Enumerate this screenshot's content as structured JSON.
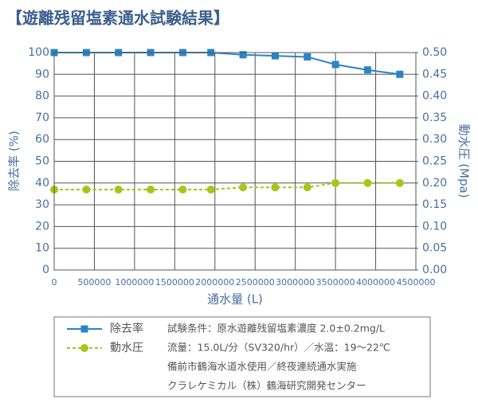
{
  "chart_data": {
    "type": "line",
    "title": "【遊離残留塩素通水試験結果】",
    "x_label": "通水量 (L)",
    "y_label": "除去率 (%)",
    "y2_label": "動水圧 (Mpa)",
    "x": [
      0,
      400000,
      800000,
      1200000,
      1600000,
      1950000,
      2350000,
      2750000,
      3150000,
      3500000,
      3900000,
      4300000
    ],
    "series": [
      {
        "name": "除去率",
        "color": "#2b84c6",
        "marker": "square",
        "linestyle": "solid",
        "values": [
          100,
          100,
          100,
          100,
          100,
          100,
          99,
          98.5,
          98,
          94.5,
          92,
          90
        ]
      },
      {
        "name": "動水圧",
        "color": "#a6c61a",
        "marker": "circle",
        "linestyle": "dashed",
        "axis": "y2",
        "values": [
          0.185,
          0.185,
          0.185,
          0.185,
          0.185,
          0.185,
          0.19,
          0.19,
          0.19,
          0.2,
          0.2,
          0.2
        ]
      }
    ],
    "xlim": [
      0,
      4500000
    ],
    "xticks": [
      0,
      500000,
      1000000,
      1500000,
      2000000,
      2500000,
      3000000,
      3500000,
      4000000,
      4500000
    ],
    "ylim": [
      0,
      100
    ],
    "yticks": [
      0,
      10,
      20,
      30,
      40,
      50,
      60,
      70,
      80,
      90,
      100
    ],
    "y2lim": [
      0,
      0.5
    ],
    "y2ticks": [
      {
        "value": 0,
        "label": "0.00"
      },
      {
        "value": 0.05,
        "label": "0.05"
      },
      {
        "value": 0.1,
        "label": "0.10"
      },
      {
        "value": 0.15,
        "label": "0.15"
      },
      {
        "value": 0.2,
        "label": "0.20"
      },
      {
        "value": 0.25,
        "label": "0.25"
      },
      {
        "value": 0.3,
        "label": "0.30"
      },
      {
        "value": 0.35,
        "label": "0.35"
      },
      {
        "value": 0.4,
        "label": "0.40"
      },
      {
        "value": 0.45,
        "label": "0.45"
      },
      {
        "value": 0.5,
        "label": "0.50"
      }
    ],
    "grid": true,
    "notes": [
      "試験条件：原水遊離残留塩素濃度 2.0±0.2mg/L",
      "流量：15.0L/分（SV320/hr）／水温：19〜22℃",
      "備前市鶴海水道水使用／終夜連続通水実施",
      "クラレケミカル（株）鶴海研究開発センター"
    ]
  }
}
